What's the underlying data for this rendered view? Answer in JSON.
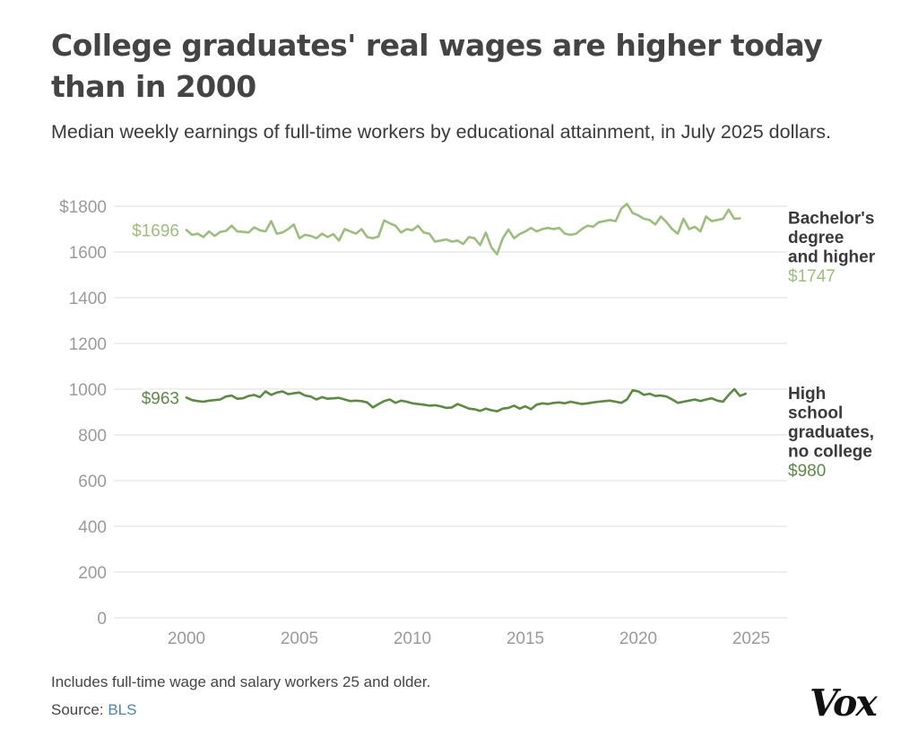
{
  "header": {
    "title": "College graduates' real wages are higher today than in 2000",
    "subtitle": "Median weekly earnings of full-time workers by educational attainment, in July 2025 dollars."
  },
  "footer": {
    "note": "Includes full-time wage and salary workers 25 and older.",
    "source_prefix": "Source: ",
    "source_link": "BLS",
    "logo": "Vox"
  },
  "colors": {
    "bachelor": "#9dbd7e",
    "highschool": "#5c8a44",
    "grid": "#dddddd",
    "tick": "#9a9a9a",
    "label": "#3a3a3a"
  },
  "chart_data": {
    "type": "line",
    "title": "College graduates' real wages are higher today than in 2000",
    "ylim": [
      0,
      1850
    ],
    "xlim": [
      1997.5,
      2026.2
    ],
    "y_ticks": [
      0,
      200,
      400,
      600,
      800,
      1000,
      1200,
      1400,
      1600,
      1800
    ],
    "y_tick_labels": [
      "0",
      "200",
      "400",
      "600",
      "800",
      "1000",
      "1200",
      "1400",
      "1600",
      "$1800"
    ],
    "x_ticks": [
      2000,
      2005,
      2010,
      2015,
      2020,
      2025
    ],
    "x_tick_labels": [
      "2000",
      "2005",
      "2010",
      "2015",
      "2020",
      "2025"
    ],
    "grid": true,
    "legend": "direct labels at right end of lines",
    "series": [
      {
        "key": "bachelor",
        "label_lines": [
          "Bachelor's",
          "degree",
          "and higher"
        ],
        "start_label": "$1696",
        "end_label": "$1747",
        "x_start": 2000,
        "x_step": 0.25,
        "values": [
          1696,
          1675,
          1680,
          1665,
          1690,
          1670,
          1688,
          1692,
          1715,
          1690,
          1688,
          1685,
          1708,
          1695,
          1690,
          1735,
          1680,
          1685,
          1700,
          1720,
          1660,
          1675,
          1670,
          1660,
          1680,
          1665,
          1678,
          1650,
          1700,
          1690,
          1680,
          1700,
          1665,
          1660,
          1668,
          1738,
          1725,
          1715,
          1685,
          1700,
          1695,
          1715,
          1685,
          1680,
          1645,
          1650,
          1655,
          1645,
          1650,
          1635,
          1665,
          1660,
          1630,
          1685,
          1620,
          1590,
          1660,
          1698,
          1660,
          1678,
          1690,
          1705,
          1690,
          1700,
          1705,
          1700,
          1705,
          1680,
          1675,
          1680,
          1700,
          1715,
          1710,
          1730,
          1735,
          1740,
          1735,
          1790,
          1810,
          1770,
          1760,
          1745,
          1740,
          1720,
          1755,
          1730,
          1700,
          1680,
          1745,
          1700,
          1710,
          1690,
          1755,
          1735,
          1740,
          1745,
          1785,
          1745,
          1747
        ]
      },
      {
        "key": "highschool",
        "label_lines": [
          "High",
          "school",
          "graduates,",
          "no college"
        ],
        "start_label": "$963",
        "end_label": "$980",
        "x_start": 2000,
        "x_step": 0.25,
        "values": [
          963,
          952,
          948,
          945,
          950,
          952,
          955,
          968,
          972,
          958,
          960,
          970,
          975,
          965,
          990,
          975,
          985,
          990,
          978,
          982,
          985,
          972,
          968,
          955,
          965,
          958,
          960,
          962,
          955,
          948,
          950,
          948,
          942,
          920,
          935,
          948,
          955,
          940,
          950,
          945,
          938,
          935,
          932,
          928,
          930,
          925,
          918,
          920,
          935,
          925,
          915,
          912,
          905,
          915,
          908,
          903,
          915,
          918,
          928,
          915,
          925,
          912,
          932,
          938,
          935,
          940,
          942,
          938,
          945,
          940,
          935,
          938,
          942,
          945,
          948,
          950,
          945,
          940,
          955,
          995,
          990,
          975,
          980,
          970,
          972,
          968,
          955,
          940,
          945,
          950,
          955,
          948,
          955,
          960,
          950,
          945,
          975,
          1000,
          970,
          980
        ]
      }
    ]
  }
}
